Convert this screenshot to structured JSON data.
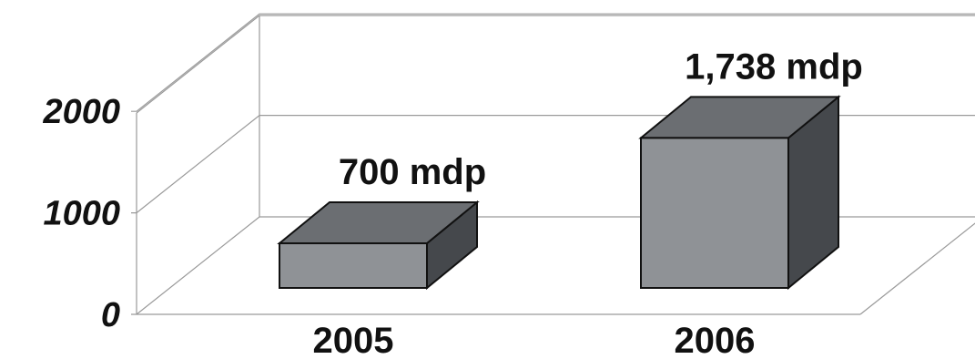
{
  "chart_data": {
    "type": "bar",
    "categories": [
      "2005",
      "2006"
    ],
    "values": [
      700,
      1738
    ],
    "data_labels": [
      "700 mdp",
      "1,738 mdp"
    ],
    "y_ticks": [
      "0",
      "1000",
      "2000"
    ],
    "ylim": [
      0,
      2000
    ],
    "grid": true,
    "three_d": true,
    "colors": {
      "front": "#8f9296",
      "top": "#6b6e72",
      "side": "#45484c",
      "grid": "#9a9a9a"
    }
  }
}
